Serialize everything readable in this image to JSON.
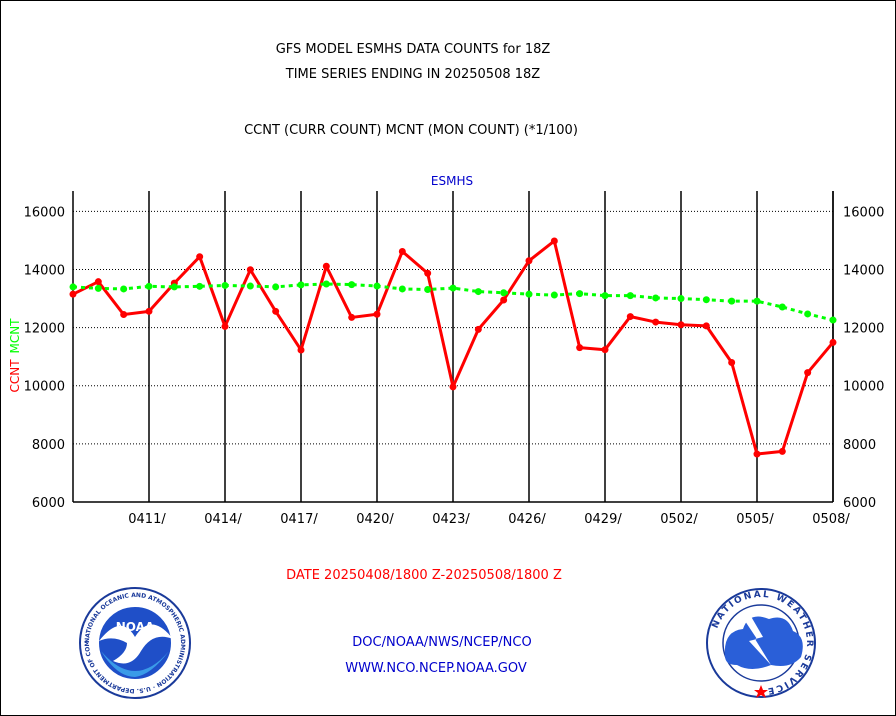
{
  "header": {
    "title_line1": "GFS MODEL ESMHS DATA COUNTS for 18Z",
    "title_line2": "TIME SERIES ENDING IN 20250508 18Z",
    "subtitle": "CCNT (CURR COUNT) MCNT (MON COUNT) (*1/100)"
  },
  "footer": {
    "date_range": "DATE 20250408/1800 Z-20250508/1800 Z",
    "org_line": "DOC/NOAA/NWS/NCEP/NCO",
    "url_line": "WWW.NCO.NCEP.NOAA.GOV"
  },
  "logos": {
    "noaa_text": "NOAA",
    "noaa_ring_text": "NATIONAL OCEANIC AND ATMOSPHERIC ADMINISTRATION · U.S. DEPARTMENT OF COMMERCE",
    "nws_ring_text": "NATIONAL WEATHER SERVICE"
  },
  "colors": {
    "ccnt": "#ff0000",
    "mcnt": "#00ff00",
    "plot_title": "#0000cc",
    "footer_red": "#ff0000",
    "footer_blue": "#0000cc"
  },
  "chart_data": {
    "type": "line",
    "title": "ESMHS",
    "ylabel_parts": [
      "CCNT",
      "MCNT"
    ],
    "ylim": [
      6000,
      16000
    ],
    "y_ticks": [
      6000,
      8000,
      10000,
      12000,
      14000,
      16000
    ],
    "y_tick_labels": [
      "6000",
      "8000",
      "10000",
      "12000",
      "14000",
      "16000"
    ],
    "x_tick_labels": [
      "0411/",
      "0414/",
      "0417/",
      "0420/",
      "0423/",
      "0426/",
      "0429/",
      "0502/",
      "0505/",
      "0508/"
    ],
    "x_tick_days": [
      3,
      6,
      9,
      12,
      15,
      18,
      21,
      24,
      27,
      30
    ],
    "xlim": [
      0,
      30
    ],
    "grid": true,
    "series": [
      {
        "name": "CCNT",
        "x": [
          0,
          1,
          2,
          3,
          4,
          5,
          6,
          7,
          8,
          9,
          10,
          11,
          12,
          13,
          14,
          15,
          16,
          17,
          18,
          19,
          20,
          21,
          22,
          23,
          24,
          25,
          26,
          27,
          28,
          29,
          30
        ],
        "values": [
          13150,
          13580,
          12450,
          12560,
          13530,
          14440,
          12040,
          13990,
          12560,
          11230,
          14110,
          12350,
          12460,
          14620,
          13870,
          9960,
          11940,
          12950,
          14300,
          14980,
          11310,
          11240,
          12380,
          12190,
          12100,
          12060,
          10800,
          7650,
          7740,
          10450,
          11490
        ]
      },
      {
        "name": "MCNT",
        "x": [
          0,
          1,
          2,
          3,
          4,
          5,
          6,
          7,
          8,
          9,
          10,
          11,
          12,
          13,
          14,
          15,
          16,
          17,
          18,
          19,
          20,
          21,
          22,
          23,
          24,
          25,
          26,
          27,
          28,
          29,
          30
        ],
        "values": [
          13400,
          13350,
          13330,
          13420,
          13400,
          13420,
          13450,
          13430,
          13400,
          13470,
          13500,
          13480,
          13430,
          13330,
          13310,
          13360,
          13240,
          13200,
          13150,
          13120,
          13170,
          13100,
          13100,
          13020,
          13000,
          12960,
          12910,
          12910,
          12710,
          12470,
          12260
        ]
      }
    ]
  }
}
